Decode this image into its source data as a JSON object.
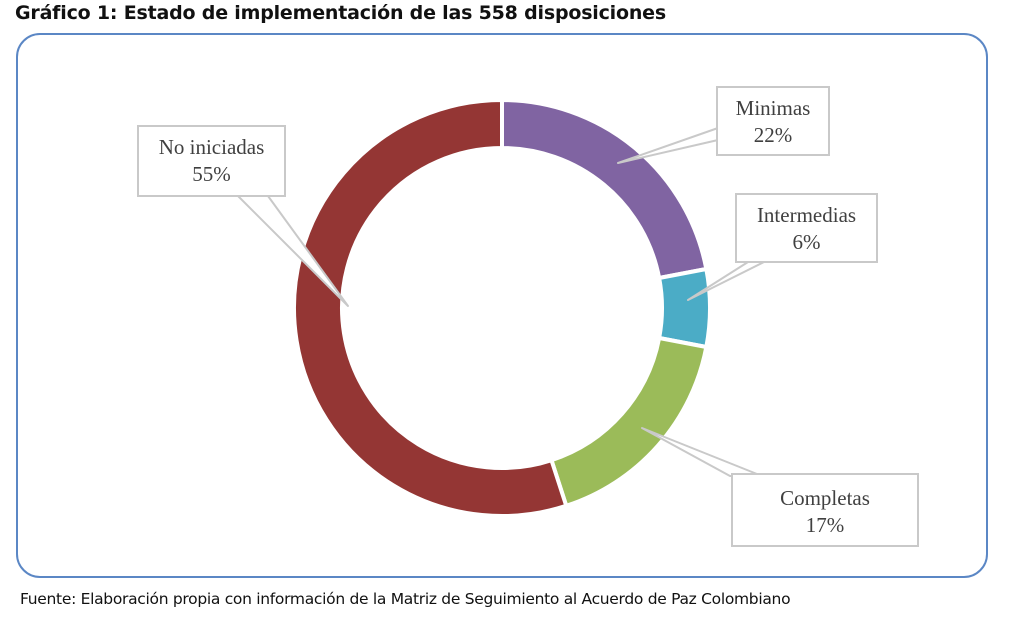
{
  "title": "Gráfico 1: Estado de implementación de las 558 disposiciones",
  "source": "Fuente: Elaboración propia con información de la Matriz de Seguimiento al Acuerdo de Paz Colombiano",
  "colors": {
    "minimas": "#8064a2",
    "intermedias": "#4bacc6",
    "completas": "#9bbb59",
    "no_iniciadas": "#943634",
    "frame": "#5b87c5",
    "callout_border": "#c9c9c9"
  },
  "labels": [
    {
      "name": "Minimas",
      "pct": "22%"
    },
    {
      "name": "Intermedias",
      "pct": "6%"
    },
    {
      "name": "Completas",
      "pct": "17%"
    },
    {
      "name": "No iniciadas",
      "pct": "55%"
    }
  ],
  "chart_data": {
    "type": "pie",
    "subtype": "doughnut",
    "title": "Gráfico 1: Estado de implementación de las 558 disposiciones",
    "categories": [
      "Minimas",
      "Intermedias",
      "Completas",
      "No iniciadas"
    ],
    "values": [
      22,
      6,
      17,
      55
    ],
    "unit": "%",
    "colors": [
      "#8064a2",
      "#4bacc6",
      "#9bbb59",
      "#943634"
    ],
    "start_angle_deg": 0,
    "direction": "clockwise",
    "legend": "none (data callouts)",
    "source": "Fuente: Elaboración propia con información de la Matriz de Seguimiento al Acuerdo de Paz Colombiano"
  }
}
